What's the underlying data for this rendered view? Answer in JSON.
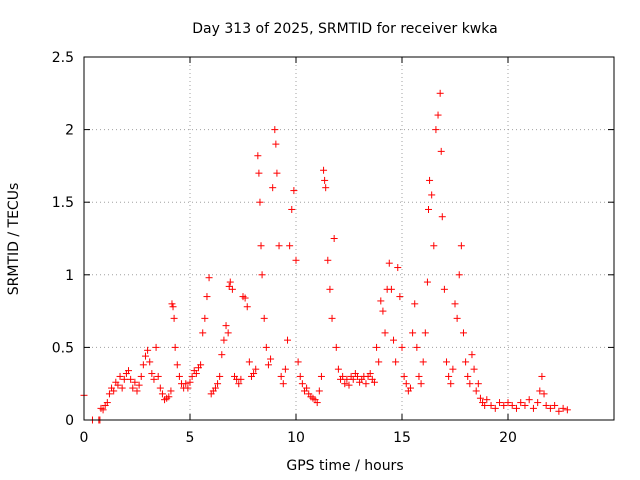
{
  "chart_data": {
    "type": "scatter",
    "title": "Day 313 of 2025, SRMTID for receiver kwka",
    "xlabel": "GPS time / hours",
    "ylabel": "SRMTID / TECUs",
    "xlim": [
      0,
      25
    ],
    "ylim": [
      0,
      2.5
    ],
    "xticks": [
      0,
      5,
      10,
      15,
      20
    ],
    "xtick_labels": [
      "0",
      "5",
      "10",
      "15",
      "20"
    ],
    "yticks": [
      0,
      0.5,
      1,
      1.5,
      2,
      2.5
    ],
    "ytick_labels": [
      "0",
      "0.5",
      "1",
      "1.5",
      "2",
      "2.5"
    ],
    "grid": true,
    "marker": "+",
    "color": "#ff0000",
    "series": [
      {
        "name": "SRMTID",
        "points": [
          [
            0.0,
            0.17
          ],
          [
            0.4,
            0.0
          ],
          [
            0.7,
            0.0
          ],
          [
            0.75,
            0.0
          ],
          [
            0.8,
            0.08
          ],
          [
            0.9,
            0.07
          ],
          [
            1.0,
            0.1
          ],
          [
            1.1,
            0.12
          ],
          [
            1.2,
            0.18
          ],
          [
            1.3,
            0.22
          ],
          [
            1.4,
            0.2
          ],
          [
            1.5,
            0.26
          ],
          [
            1.6,
            0.24
          ],
          [
            1.7,
            0.3
          ],
          [
            1.8,
            0.22
          ],
          [
            1.9,
            0.28
          ],
          [
            2.0,
            0.32
          ],
          [
            2.1,
            0.34
          ],
          [
            2.2,
            0.28
          ],
          [
            2.3,
            0.22
          ],
          [
            2.4,
            0.26
          ],
          [
            2.5,
            0.2
          ],
          [
            2.6,
            0.24
          ],
          [
            2.7,
            0.3
          ],
          [
            2.8,
            0.38
          ],
          [
            2.9,
            0.44
          ],
          [
            3.0,
            0.48
          ],
          [
            3.1,
            0.4
          ],
          [
            3.2,
            0.32
          ],
          [
            3.3,
            0.28
          ],
          [
            3.4,
            0.5
          ],
          [
            3.5,
            0.3
          ],
          [
            3.6,
            0.22
          ],
          [
            3.7,
            0.18
          ],
          [
            3.8,
            0.14
          ],
          [
            3.9,
            0.15
          ],
          [
            4.0,
            0.16
          ],
          [
            4.1,
            0.2
          ],
          [
            4.15,
            0.8
          ],
          [
            4.2,
            0.78
          ],
          [
            4.25,
            0.7
          ],
          [
            4.3,
            0.5
          ],
          [
            4.4,
            0.38
          ],
          [
            4.5,
            0.3
          ],
          [
            4.6,
            0.25
          ],
          [
            4.7,
            0.22
          ],
          [
            4.8,
            0.25
          ],
          [
            4.9,
            0.22
          ],
          [
            5.0,
            0.26
          ],
          [
            5.1,
            0.3
          ],
          [
            5.2,
            0.34
          ],
          [
            5.3,
            0.32
          ],
          [
            5.4,
            0.36
          ],
          [
            5.5,
            0.38
          ],
          [
            5.6,
            0.6
          ],
          [
            5.7,
            0.7
          ],
          [
            5.8,
            0.85
          ],
          [
            5.9,
            0.98
          ],
          [
            6.0,
            0.18
          ],
          [
            6.1,
            0.2
          ],
          [
            6.2,
            0.22
          ],
          [
            6.3,
            0.25
          ],
          [
            6.4,
            0.3
          ],
          [
            6.5,
            0.45
          ],
          [
            6.6,
            0.55
          ],
          [
            6.7,
            0.65
          ],
          [
            6.8,
            0.6
          ],
          [
            6.85,
            0.92
          ],
          [
            6.9,
            0.95
          ],
          [
            7.0,
            0.9
          ],
          [
            7.1,
            0.3
          ],
          [
            7.2,
            0.28
          ],
          [
            7.3,
            0.25
          ],
          [
            7.4,
            0.28
          ],
          [
            7.5,
            0.85
          ],
          [
            7.6,
            0.84
          ],
          [
            7.7,
            0.78
          ],
          [
            7.8,
            0.4
          ],
          [
            7.9,
            0.3
          ],
          [
            8.0,
            0.32
          ],
          [
            8.1,
            0.35
          ],
          [
            8.2,
            1.82
          ],
          [
            8.25,
            1.7
          ],
          [
            8.3,
            1.5
          ],
          [
            8.35,
            1.2
          ],
          [
            8.4,
            1.0
          ],
          [
            8.5,
            0.7
          ],
          [
            8.6,
            0.5
          ],
          [
            8.7,
            0.38
          ],
          [
            8.8,
            0.42
          ],
          [
            8.9,
            1.6
          ],
          [
            9.0,
            2.0
          ],
          [
            9.05,
            1.9
          ],
          [
            9.1,
            1.7
          ],
          [
            9.2,
            1.2
          ],
          [
            9.3,
            0.3
          ],
          [
            9.4,
            0.25
          ],
          [
            9.5,
            0.35
          ],
          [
            9.6,
            0.55
          ],
          [
            9.7,
            1.2
          ],
          [
            9.8,
            1.45
          ],
          [
            9.9,
            1.58
          ],
          [
            10.0,
            1.1
          ],
          [
            10.1,
            0.4
          ],
          [
            10.2,
            0.3
          ],
          [
            10.3,
            0.25
          ],
          [
            10.4,
            0.2
          ],
          [
            10.5,
            0.22
          ],
          [
            10.6,
            0.18
          ],
          [
            10.7,
            0.16
          ],
          [
            10.8,
            0.15
          ],
          [
            10.9,
            0.14
          ],
          [
            11.0,
            0.12
          ],
          [
            11.1,
            0.2
          ],
          [
            11.2,
            0.3
          ],
          [
            11.3,
            1.72
          ],
          [
            11.35,
            1.65
          ],
          [
            11.4,
            1.6
          ],
          [
            11.5,
            1.1
          ],
          [
            11.6,
            0.9
          ],
          [
            11.7,
            0.7
          ],
          [
            11.8,
            1.25
          ],
          [
            11.9,
            0.5
          ],
          [
            12.0,
            0.35
          ],
          [
            12.1,
            0.28
          ],
          [
            12.2,
            0.3
          ],
          [
            12.3,
            0.25
          ],
          [
            12.4,
            0.28
          ],
          [
            12.5,
            0.24
          ],
          [
            12.6,
            0.3
          ],
          [
            12.7,
            0.28
          ],
          [
            12.8,
            0.32
          ],
          [
            12.9,
            0.3
          ],
          [
            13.0,
            0.26
          ],
          [
            13.1,
            0.28
          ],
          [
            13.2,
            0.3
          ],
          [
            13.3,
            0.25
          ],
          [
            13.4,
            0.3
          ],
          [
            13.5,
            0.32
          ],
          [
            13.6,
            0.28
          ],
          [
            13.7,
            0.26
          ],
          [
            13.8,
            0.5
          ],
          [
            13.9,
            0.4
          ],
          [
            14.0,
            0.82
          ],
          [
            14.1,
            0.75
          ],
          [
            14.2,
            0.6
          ],
          [
            14.3,
            0.9
          ],
          [
            14.4,
            1.08
          ],
          [
            14.5,
            0.9
          ],
          [
            14.6,
            0.55
          ],
          [
            14.7,
            0.4
          ],
          [
            14.8,
            1.05
          ],
          [
            14.9,
            0.85
          ],
          [
            15.0,
            0.5
          ],
          [
            15.1,
            0.3
          ],
          [
            15.2,
            0.25
          ],
          [
            15.3,
            0.2
          ],
          [
            15.4,
            0.22
          ],
          [
            15.5,
            0.6
          ],
          [
            15.6,
            0.8
          ],
          [
            15.7,
            0.5
          ],
          [
            15.8,
            0.3
          ],
          [
            15.9,
            0.25
          ],
          [
            16.0,
            0.4
          ],
          [
            16.1,
            0.6
          ],
          [
            16.2,
            0.95
          ],
          [
            16.25,
            1.45
          ],
          [
            16.3,
            1.65
          ],
          [
            16.4,
            1.55
          ],
          [
            16.5,
            1.2
          ],
          [
            16.6,
            2.0
          ],
          [
            16.7,
            2.1
          ],
          [
            16.8,
            2.25
          ],
          [
            16.85,
            1.85
          ],
          [
            16.9,
            1.4
          ],
          [
            17.0,
            0.9
          ],
          [
            17.1,
            0.4
          ],
          [
            17.2,
            0.3
          ],
          [
            17.3,
            0.25
          ],
          [
            17.4,
            0.35
          ],
          [
            17.5,
            0.8
          ],
          [
            17.6,
            0.7
          ],
          [
            17.7,
            1.0
          ],
          [
            17.8,
            1.2
          ],
          [
            17.9,
            0.6
          ],
          [
            18.0,
            0.4
          ],
          [
            18.1,
            0.3
          ],
          [
            18.2,
            0.25
          ],
          [
            18.3,
            0.45
          ],
          [
            18.4,
            0.35
          ],
          [
            18.5,
            0.2
          ],
          [
            18.6,
            0.25
          ],
          [
            18.7,
            0.15
          ],
          [
            18.8,
            0.12
          ],
          [
            18.9,
            0.1
          ],
          [
            19.0,
            0.14
          ],
          [
            19.2,
            0.1
          ],
          [
            19.4,
            0.08
          ],
          [
            19.6,
            0.12
          ],
          [
            19.8,
            0.1
          ],
          [
            20.0,
            0.12
          ],
          [
            20.2,
            0.1
          ],
          [
            20.4,
            0.08
          ],
          [
            20.6,
            0.12
          ],
          [
            20.8,
            0.1
          ],
          [
            21.0,
            0.14
          ],
          [
            21.2,
            0.08
          ],
          [
            21.4,
            0.12
          ],
          [
            21.5,
            0.2
          ],
          [
            21.6,
            0.3
          ],
          [
            21.7,
            0.18
          ],
          [
            21.8,
            0.1
          ],
          [
            22.0,
            0.08
          ],
          [
            22.2,
            0.1
          ],
          [
            22.4,
            0.06
          ],
          [
            22.6,
            0.08
          ],
          [
            22.8,
            0.07
          ]
        ]
      }
    ]
  }
}
